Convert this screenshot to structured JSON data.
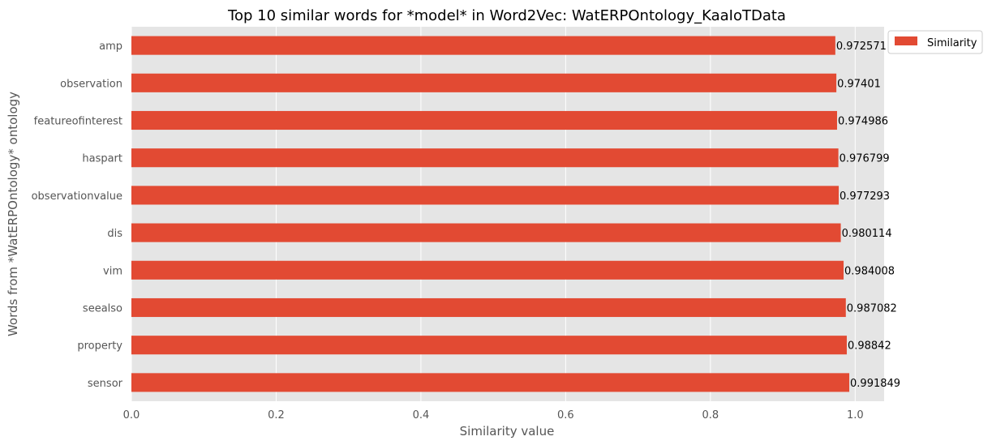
{
  "chart_data": {
    "type": "bar",
    "orientation": "horizontal",
    "title": "Top 10 similar words for *model* in Word2Vec: WatERPOntology_KaaIoTData",
    "xlabel": "Similarity value",
    "ylabel": "Words from *WatERPOntology* ontology",
    "xlim": [
      0,
      1.04
    ],
    "xticks": [
      0.0,
      0.2,
      0.4,
      0.6,
      0.8,
      1.0
    ],
    "xtick_labels": [
      "0.0",
      "0.2",
      "0.4",
      "0.6",
      "0.8",
      "1.0"
    ],
    "grid": true,
    "legend_position": "outside top-right",
    "categories": [
      "sensor",
      "property",
      "seealso",
      "vim",
      "dis",
      "observationvalue",
      "haspart",
      "featureofinterest",
      "observation",
      "amp"
    ],
    "series": [
      {
        "name": "Similarity",
        "color": "#E24A33",
        "values": [
          0.991849,
          0.98842,
          0.987082,
          0.984008,
          0.980114,
          0.977293,
          0.976799,
          0.974986,
          0.97401,
          0.972571
        ],
        "value_labels": [
          "0.991849",
          "0.98842",
          "0.987082",
          "0.984008",
          "0.980114",
          "0.977293",
          "0.976799",
          "0.974986",
          "0.97401",
          "0.972571"
        ]
      }
    ]
  },
  "colors": {
    "plot_background": "#E5E5E5",
    "grid": "#FFFFFF",
    "bar": "#E24A33"
  }
}
